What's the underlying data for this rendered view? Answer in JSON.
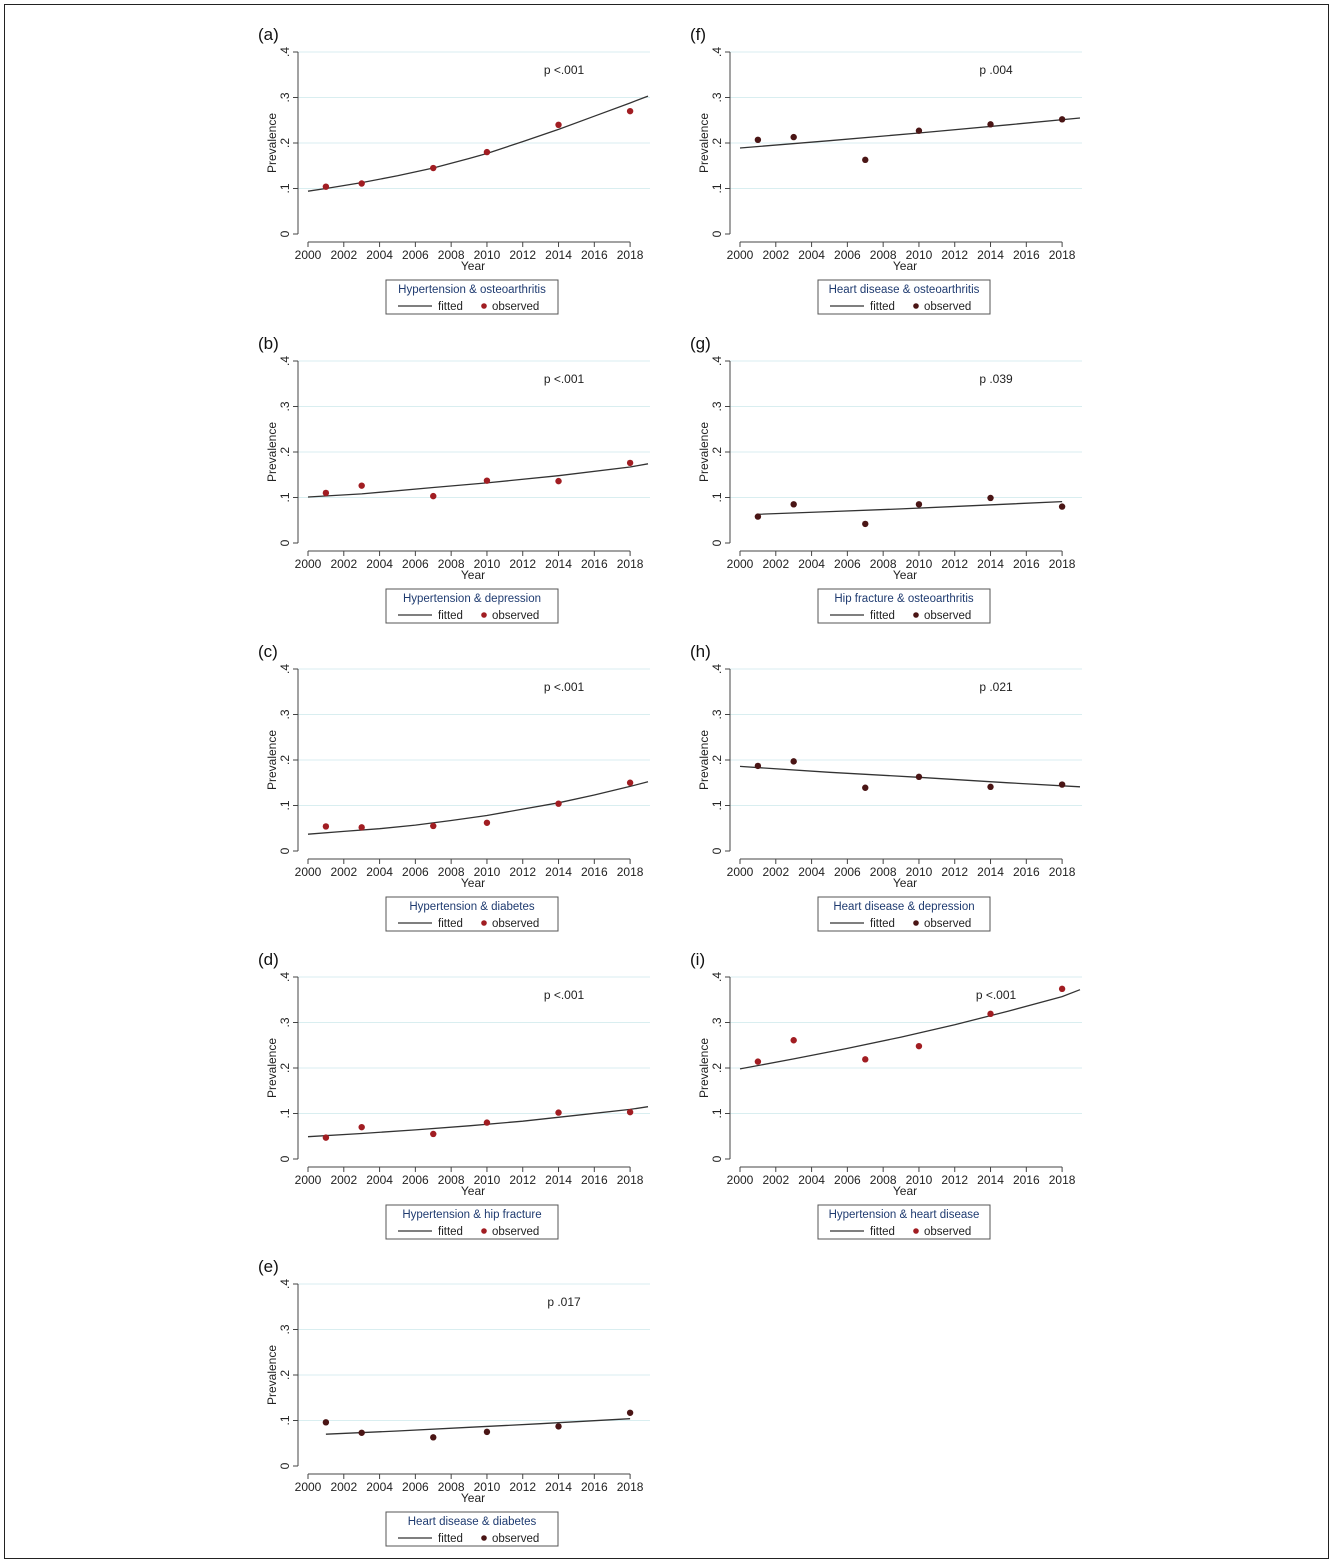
{
  "chart_data": [
    {
      "panel": "(a)",
      "type": "line",
      "x": [
        2001,
        2003,
        2007,
        2010,
        2014,
        2018
      ],
      "series": [
        {
          "name": "fitted",
          "kind": "line",
          "x": [
            2000,
            2001,
            2003,
            2005,
            2007,
            2009,
            2010,
            2012,
            2014,
            2016,
            2018,
            2019
          ],
          "values": [
            0.094,
            0.1,
            0.113,
            0.128,
            0.145,
            0.166,
            0.177,
            0.203,
            0.23,
            0.259,
            0.288,
            0.303
          ]
        },
        {
          "name": "observed",
          "kind": "scatter",
          "values": [
            0.104,
            0.111,
            0.145,
            0.18,
            0.24,
            0.27
          ]
        }
      ],
      "legend_title": "Hypertension & osteoarthritis",
      "annotation": "p <.001",
      "xlabel": "Year",
      "ylabel": "Prevalence",
      "xticks": [
        "2000",
        "2002",
        "2004",
        "2006",
        "2008",
        "2010",
        "2012",
        "2014",
        "2016",
        "2018"
      ],
      "yticks": [
        "0",
        ".1",
        ".2",
        ".3",
        ".4"
      ],
      "xlim": [
        2000,
        2019
      ],
      "ylim": [
        0,
        0.4
      ],
      "legend_position": "bottom",
      "grid": true
    },
    {
      "panel": "(b)",
      "type": "line",
      "x": [
        2001,
        2003,
        2007,
        2010,
        2014,
        2018
      ],
      "series": [
        {
          "name": "fitted",
          "kind": "line",
          "x": [
            2000,
            2003,
            2007,
            2010,
            2014,
            2018,
            2019
          ],
          "values": [
            0.101,
            0.108,
            0.122,
            0.132,
            0.148,
            0.167,
            0.174
          ]
        },
        {
          "name": "observed",
          "kind": "scatter",
          "values": [
            0.11,
            0.126,
            0.103,
            0.137,
            0.136,
            0.176
          ]
        }
      ],
      "legend_title": "Hypertension & depression",
      "annotation": "p <.001",
      "xlabel": "Year",
      "ylabel": "Prevalence",
      "xticks": [
        "2000",
        "2002",
        "2004",
        "2006",
        "2008",
        "2010",
        "2012",
        "2014",
        "2016",
        "2018"
      ],
      "yticks": [
        "0",
        ".1",
        ".2",
        ".3",
        ".4"
      ],
      "xlim": [
        2000,
        2019
      ],
      "ylim": [
        0,
        0.4
      ],
      "legend_position": "bottom",
      "grid": true
    },
    {
      "panel": "(c)",
      "type": "line",
      "x": [
        2001,
        2003,
        2007,
        2010,
        2014,
        2018
      ],
      "series": [
        {
          "name": "fitted",
          "kind": "line",
          "x": [
            2000,
            2002,
            2004,
            2006,
            2008,
            2010,
            2012,
            2014,
            2016,
            2018,
            2019
          ],
          "values": [
            0.037,
            0.043,
            0.049,
            0.057,
            0.067,
            0.078,
            0.092,
            0.106,
            0.123,
            0.142,
            0.152
          ]
        },
        {
          "name": "observed",
          "kind": "scatter",
          "values": [
            0.054,
            0.052,
            0.055,
            0.062,
            0.104,
            0.15
          ]
        }
      ],
      "legend_title": "Hypertension & diabetes",
      "annotation": "p <.001",
      "xlabel": "Year",
      "ylabel": "Prevalence",
      "xticks": [
        "2000",
        "2002",
        "2004",
        "2006",
        "2008",
        "2010",
        "2012",
        "2014",
        "2016",
        "2018"
      ],
      "yticks": [
        "0",
        ".1",
        ".2",
        ".3",
        ".4"
      ],
      "xlim": [
        2000,
        2019
      ],
      "ylim": [
        0,
        0.4
      ],
      "legend_position": "bottom",
      "grid": true
    },
    {
      "panel": "(d)",
      "type": "line",
      "x": [
        2001,
        2003,
        2007,
        2010,
        2014,
        2018
      ],
      "series": [
        {
          "name": "fitted",
          "kind": "line",
          "x": [
            2000,
            2003,
            2006,
            2009,
            2012,
            2015,
            2018,
            2019
          ],
          "values": [
            0.049,
            0.056,
            0.064,
            0.073,
            0.083,
            0.096,
            0.109,
            0.115
          ]
        },
        {
          "name": "observed",
          "kind": "scatter",
          "values": [
            0.047,
            0.07,
            0.055,
            0.08,
            0.102,
            0.103
          ]
        }
      ],
      "legend_title": "Hypertension & hip fracture",
      "annotation": "p <.001",
      "xlabel": "Year",
      "ylabel": "Prevalence",
      "xticks": [
        "2000",
        "2002",
        "2004",
        "2006",
        "2008",
        "2010",
        "2012",
        "2014",
        "2016",
        "2018"
      ],
      "yticks": [
        "0",
        ".1",
        ".2",
        ".3",
        ".4"
      ],
      "xlim": [
        2000,
        2019
      ],
      "ylim": [
        0,
        0.4
      ],
      "legend_position": "bottom",
      "grid": true
    },
    {
      "panel": "(e)",
      "type": "line",
      "x": [
        2001,
        2003,
        2007,
        2010,
        2014,
        2018
      ],
      "series": [
        {
          "name": "fitted",
          "kind": "line",
          "x": [
            2001,
            2005,
            2009,
            2013,
            2018
          ],
          "values": [
            0.07,
            0.077,
            0.085,
            0.093,
            0.104
          ]
        },
        {
          "name": "observed",
          "kind": "scatter",
          "values": [
            0.096,
            0.073,
            0.063,
            0.075,
            0.087,
            0.117
          ]
        }
      ],
      "legend_title": "Heart disease & diabetes",
      "annotation": "p .017",
      "xlabel": "Year",
      "ylabel": "Prevalence",
      "xticks": [
        "2000",
        "2002",
        "2004",
        "2006",
        "2008",
        "2010",
        "2012",
        "2014",
        "2016",
        "2018"
      ],
      "yticks": [
        "0",
        ".1",
        ".2",
        ".3",
        ".4"
      ],
      "xlim": [
        2000,
        2019
      ],
      "ylim": [
        0,
        0.4
      ],
      "legend_position": "bottom",
      "grid": true
    },
    {
      "panel": "(f)",
      "type": "line",
      "x": [
        2001,
        2003,
        2007,
        2010,
        2014,
        2018
      ],
      "series": [
        {
          "name": "fitted",
          "kind": "line",
          "x": [
            2000,
            2005,
            2010,
            2015,
            2019
          ],
          "values": [
            0.189,
            0.205,
            0.222,
            0.24,
            0.255
          ]
        },
        {
          "name": "observed",
          "kind": "scatter",
          "values": [
            0.207,
            0.213,
            0.163,
            0.227,
            0.241,
            0.252
          ]
        }
      ],
      "legend_title": "Heart disease & osteoarthritis",
      "annotation": "p .004",
      "xlabel": "Year",
      "ylabel": "Prevalence",
      "xticks": [
        "2000",
        "2002",
        "2004",
        "2006",
        "2008",
        "2010",
        "2012",
        "2014",
        "2016",
        "2018"
      ],
      "yticks": [
        "0",
        ".1",
        ".2",
        ".3",
        ".4"
      ],
      "xlim": [
        2000,
        2019
      ],
      "ylim": [
        0,
        0.4
      ],
      "legend_position": "bottom",
      "grid": true
    },
    {
      "panel": "(g)",
      "type": "line",
      "x": [
        2001,
        2003,
        2007,
        2010,
        2014,
        2018
      ],
      "series": [
        {
          "name": "fitted",
          "kind": "line",
          "x": [
            2001,
            2005,
            2009,
            2013,
            2018
          ],
          "values": [
            0.063,
            0.069,
            0.075,
            0.082,
            0.091
          ]
        },
        {
          "name": "observed",
          "kind": "scatter",
          "values": [
            0.058,
            0.085,
            0.042,
            0.085,
            0.099,
            0.08
          ]
        }
      ],
      "legend_title": "Hip fracture & osteoarthritis",
      "annotation": "p .039",
      "xlabel": "Year",
      "ylabel": "Prevalence",
      "xticks": [
        "2000",
        "2002",
        "2004",
        "2006",
        "2008",
        "2010",
        "2012",
        "2014",
        "2016",
        "2018"
      ],
      "yticks": [
        "0",
        ".1",
        ".2",
        ".3",
        ".4"
      ],
      "xlim": [
        2000,
        2019
      ],
      "ylim": [
        0,
        0.4
      ],
      "legend_position": "bottom",
      "grid": true
    },
    {
      "panel": "(h)",
      "type": "line",
      "x": [
        2001,
        2003,
        2007,
        2010,
        2014,
        2018
      ],
      "series": [
        {
          "name": "fitted",
          "kind": "line",
          "x": [
            2000,
            2005,
            2010,
            2015,
            2019
          ],
          "values": [
            0.186,
            0.173,
            0.162,
            0.15,
            0.141
          ]
        },
        {
          "name": "observed",
          "kind": "scatter",
          "values": [
            0.187,
            0.197,
            0.139,
            0.163,
            0.141,
            0.146
          ]
        }
      ],
      "legend_title": "Heart disease & depression",
      "annotation": "p .021",
      "xlabel": "Year",
      "ylabel": "Prevalence",
      "xticks": [
        "2000",
        "2002",
        "2004",
        "2006",
        "2008",
        "2010",
        "2012",
        "2014",
        "2016",
        "2018"
      ],
      "yticks": [
        "0",
        ".1",
        ".2",
        ".3",
        ".4"
      ],
      "xlim": [
        2000,
        2019
      ],
      "ylim": [
        0,
        0.4
      ],
      "legend_position": "bottom",
      "grid": true
    },
    {
      "panel": "(i)",
      "type": "line",
      "x": [
        2001,
        2003,
        2007,
        2010,
        2014,
        2018
      ],
      "series": [
        {
          "name": "fitted",
          "kind": "line",
          "x": [
            2000,
            2003,
            2006,
            2009,
            2012,
            2015,
            2018,
            2019
          ],
          "values": [
            0.198,
            0.22,
            0.243,
            0.268,
            0.295,
            0.325,
            0.357,
            0.372
          ]
        },
        {
          "name": "observed",
          "kind": "scatter",
          "values": [
            0.214,
            0.261,
            0.219,
            0.248,
            0.319,
            0.374
          ]
        }
      ],
      "legend_title": "Hypertension & heart disease",
      "annotation": "p <.001",
      "xlabel": "Year",
      "ylabel": "Prevalence",
      "xticks": [
        "2000",
        "2002",
        "2004",
        "2006",
        "2008",
        "2010",
        "2012",
        "2014",
        "2016",
        "2018"
      ],
      "yticks": [
        "0",
        ".1",
        ".2",
        ".3",
        ".4"
      ],
      "xlim": [
        2000,
        2019
      ],
      "ylim": [
        0,
        0.4
      ],
      "legend_position": "bottom",
      "grid": true
    }
  ],
  "colors": {
    "marker_red": "#a11d22",
    "marker_dark": "#4a1515",
    "fitted_line": "#333333",
    "gridline": "#d9eef0",
    "legend_title_text": "#1f3b70",
    "axis": "#444444"
  }
}
